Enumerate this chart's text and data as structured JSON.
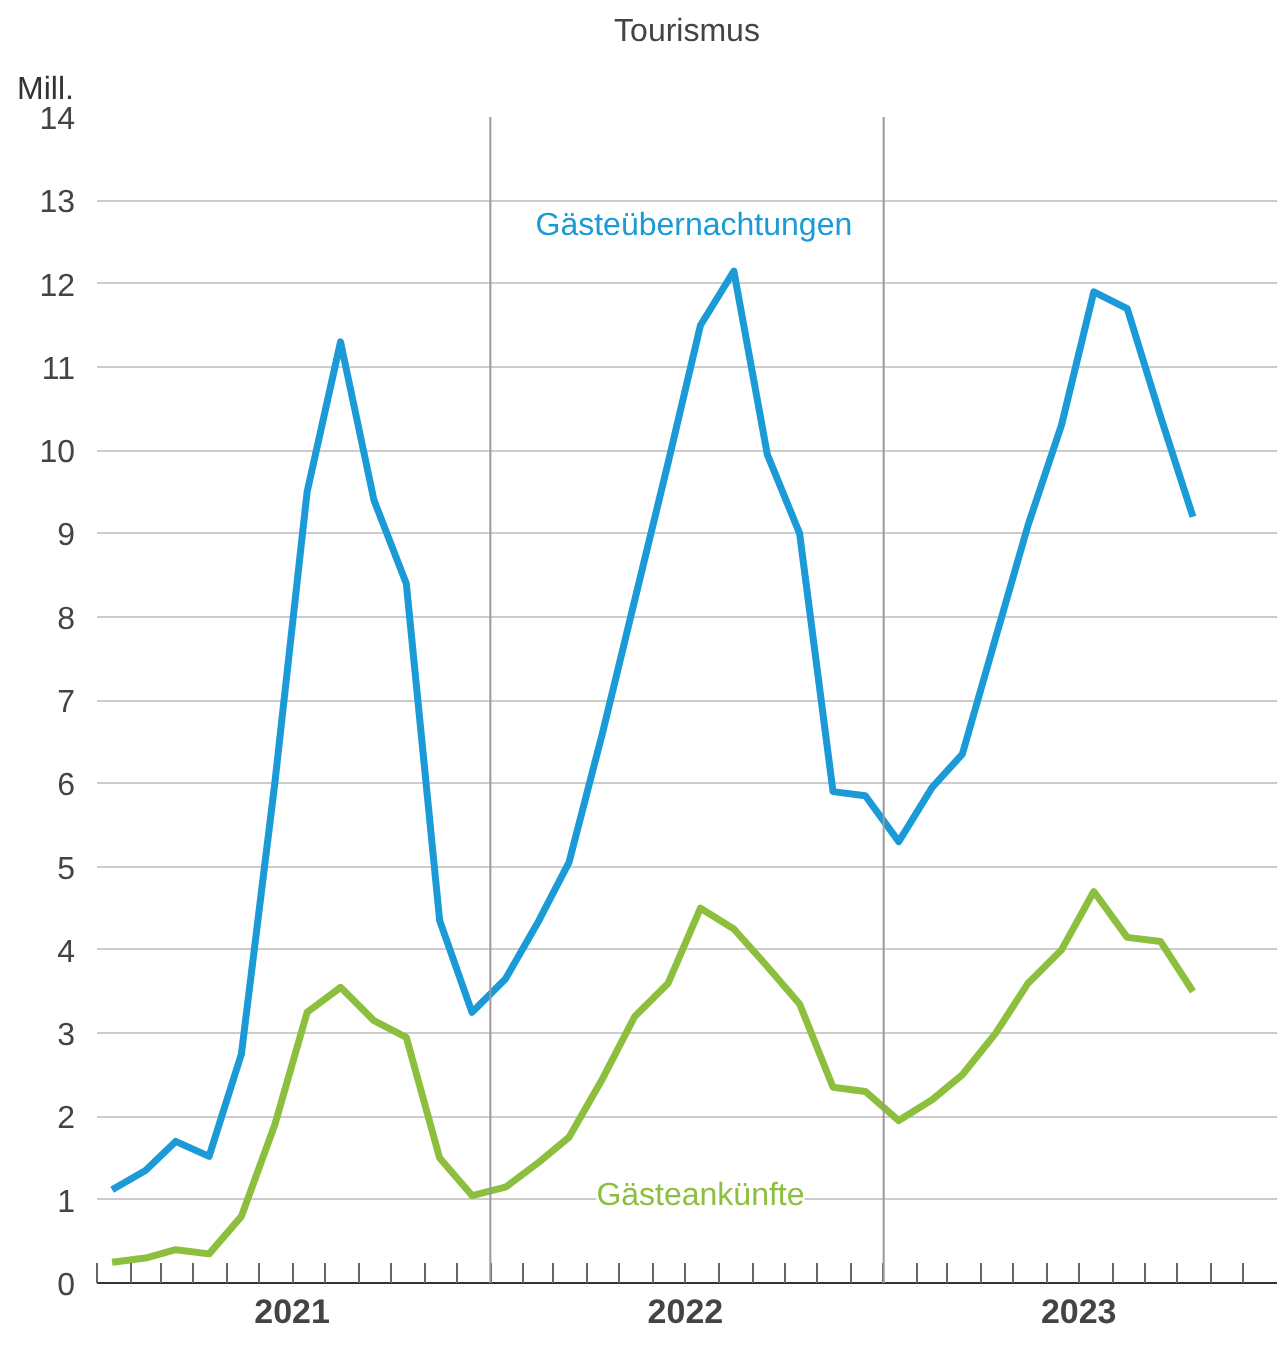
{
  "chart_data": {
    "type": "line",
    "title": "Tourismus",
    "ylabel": "Mill.",
    "x": [
      "2021-01-15",
      "2021-02-15",
      "2021-03-15",
      "2021-04-15",
      "2021-05-15",
      "2021-06-15",
      "2021-07-15",
      "2021-08-15",
      "2021-09-15",
      "2021-10-15",
      "2021-11-15",
      "2021-12-15",
      "2022-01-15",
      "2022-02-15",
      "2022-03-15",
      "2022-04-15",
      "2022-05-15",
      "2022-06-15",
      "2022-07-15",
      "2022-08-15",
      "2022-09-15",
      "2022-10-15",
      "2022-11-15",
      "2022-12-15",
      "2023-01-15",
      "2023-02-15",
      "2023-03-15",
      "2023-04-15",
      "2023-05-15",
      "2023-06-15",
      "2023-07-15",
      "2023-08-15",
      "2023-09-15",
      "2023-10-15"
    ],
    "series": [
      {
        "name": "Gästeübernachtungen",
        "color": "#1a9ad6",
        "values": [
          1.12,
          1.35,
          1.7,
          1.52,
          2.75,
          6.0,
          9.5,
          11.3,
          9.4,
          8.4,
          4.35,
          3.25,
          3.65,
          4.35,
          5.05,
          6.6,
          8.2,
          9.85,
          11.5,
          12.15,
          9.95,
          9.0,
          5.9,
          5.85,
          5.3,
          5.95,
          6.35,
          7.75,
          9.1,
          10.3,
          11.9,
          11.7,
          10.4,
          9.2
        ]
      },
      {
        "name": "Gästeankünfte",
        "color": "#8dbf3e",
        "values": [
          0.25,
          0.3,
          0.4,
          0.35,
          0.8,
          1.9,
          3.25,
          3.55,
          3.15,
          2.95,
          1.5,
          1.05,
          1.15,
          1.45,
          1.75,
          2.45,
          3.2,
          3.6,
          4.5,
          4.25,
          3.8,
          3.35,
          2.35,
          2.3,
          1.95,
          2.2,
          2.5,
          3.0,
          3.6,
          4.0,
          4.7,
          4.15,
          4.1,
          3.5
        ]
      }
    ],
    "xlim": [
      "2021-01-01",
      "2024-01-01"
    ],
    "xticks": [
      {
        "value": "2021-01-01",
        "label": null
      },
      {
        "value": "2021-02-01",
        "label": null
      },
      {
        "value": "2021-03-01",
        "label": null
      },
      {
        "value": "2021-04-01",
        "label": null
      },
      {
        "value": "2021-05-01",
        "label": null
      },
      {
        "value": "2021-06-01",
        "label": null
      },
      {
        "value": "2021-07-01",
        "label": "2021"
      },
      {
        "value": "2021-08-01",
        "label": null
      },
      {
        "value": "2021-09-01",
        "label": null
      },
      {
        "value": "2021-10-01",
        "label": null
      },
      {
        "value": "2021-11-01",
        "label": null
      },
      {
        "value": "2021-12-01",
        "label": null
      },
      {
        "value": "2022-01-01",
        "label": null
      },
      {
        "value": "2022-02-01",
        "label": null
      },
      {
        "value": "2022-03-01",
        "label": null
      },
      {
        "value": "2022-04-01",
        "label": null
      },
      {
        "value": "2022-05-01",
        "label": null
      },
      {
        "value": "2022-06-01",
        "label": null
      },
      {
        "value": "2022-07-01",
        "label": "2022"
      },
      {
        "value": "2022-08-01",
        "label": null
      },
      {
        "value": "2022-09-01",
        "label": null
      },
      {
        "value": "2022-10-01",
        "label": null
      },
      {
        "value": "2022-11-01",
        "label": null
      },
      {
        "value": "2022-12-01",
        "label": null
      },
      {
        "value": "2023-01-01",
        "label": null
      },
      {
        "value": "2023-02-01",
        "label": null
      },
      {
        "value": "2023-03-01",
        "label": null
      },
      {
        "value": "2023-04-01",
        "label": null
      },
      {
        "value": "2023-05-01",
        "label": null
      },
      {
        "value": "2023-06-01",
        "label": null
      },
      {
        "value": "2023-07-01",
        "label": "2023"
      },
      {
        "value": "2023-08-01",
        "label": null
      },
      {
        "value": "2023-09-01",
        "label": null
      },
      {
        "value": "2023-10-01",
        "label": null
      },
      {
        "value": "2023-11-01",
        "label": null
      },
      {
        "value": "2023-12-01",
        "label": null
      }
    ],
    "ylim": [
      0,
      14
    ],
    "yticks": [
      0,
      1,
      2,
      3,
      4,
      5,
      6,
      7,
      8,
      9,
      10,
      11,
      12,
      13,
      14
    ],
    "ref_lines": [
      {
        "axis": "x",
        "value": "2022-01-01",
        "label": null,
        "color": "#999999"
      },
      {
        "axis": "x",
        "value": "2023-01-01",
        "label": null,
        "color": "#999999"
      }
    ],
    "grid": "y",
    "legend": false,
    "marker": "none",
    "line_style": "solid"
  }
}
